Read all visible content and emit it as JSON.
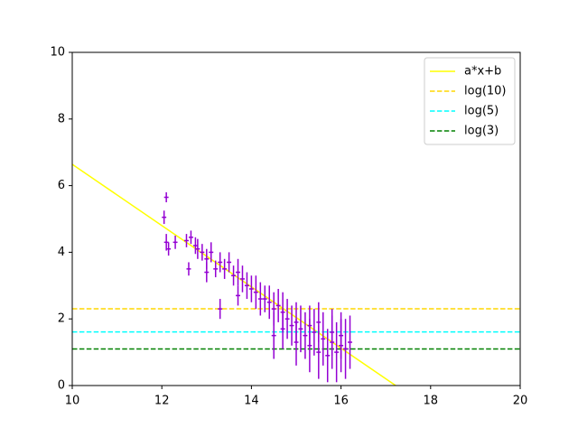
{
  "chart_data": {
    "type": "errorbar",
    "x": [
      12.05,
      12.1,
      12.1,
      12.15,
      12.3,
      12.55,
      12.6,
      12.65,
      12.75,
      12.8,
      12.9,
      13.0,
      13.0,
      13.1,
      13.2,
      13.3,
      13.3,
      13.4,
      13.5,
      13.6,
      13.7,
      13.7,
      13.8,
      13.9,
      14.0,
      14.1,
      14.2,
      14.3,
      14.4,
      14.5,
      14.5,
      14.6,
      14.7,
      14.7,
      14.8,
      14.9,
      15.0,
      15.0,
      15.1,
      15.2,
      15.3,
      15.3,
      15.4,
      15.5,
      15.5,
      15.6,
      15.7,
      15.8,
      15.8,
      15.9,
      16.0,
      16.0,
      16.1,
      16.2
    ],
    "values": [
      5.05,
      5.65,
      4.3,
      4.1,
      4.3,
      4.35,
      3.5,
      4.45,
      4.2,
      4.1,
      4.0,
      3.8,
      3.4,
      4.0,
      3.5,
      3.7,
      2.3,
      3.5,
      3.7,
      3.3,
      2.7,
      3.4,
      3.2,
      3.0,
      2.9,
      2.8,
      2.6,
      2.6,
      2.5,
      1.5,
      2.3,
      2.4,
      2.2,
      1.7,
      2.0,
      1.8,
      1.9,
      1.3,
      1.7,
      1.5,
      1.2,
      1.8,
      1.6,
      1.0,
      1.9,
      1.4,
      0.9,
      1.3,
      1.6,
      1.0,
      1.2,
      1.5,
      1.1,
      1.3
    ],
    "yerr": [
      0.2,
      0.15,
      0.25,
      0.2,
      0.2,
      0.2,
      0.2,
      0.2,
      0.25,
      0.3,
      0.25,
      0.3,
      0.3,
      0.3,
      0.25,
      0.3,
      0.3,
      0.3,
      0.3,
      0.3,
      0.3,
      0.4,
      0.4,
      0.4,
      0.4,
      0.5,
      0.5,
      0.4,
      0.5,
      0.7,
      0.5,
      0.5,
      0.6,
      0.6,
      0.6,
      0.6,
      0.6,
      0.7,
      0.7,
      0.7,
      0.8,
      0.6,
      0.7,
      0.8,
      0.6,
      0.8,
      0.8,
      0.8,
      0.7,
      0.9,
      0.8,
      0.7,
      0.9,
      0.8
    ],
    "xerr": [
      0.05,
      0.05,
      0.05,
      0.05,
      0.05,
      0.05,
      0.05,
      0.05,
      0.05,
      0.05,
      0.05,
      0.05,
      0.05,
      0.05,
      0.05,
      0.05,
      0.05,
      0.05,
      0.05,
      0.05,
      0.05,
      0.05,
      0.05,
      0.05,
      0.05,
      0.05,
      0.05,
      0.05,
      0.05,
      0.05,
      0.05,
      0.05,
      0.05,
      0.05,
      0.05,
      0.05,
      0.05,
      0.05,
      0.05,
      0.05,
      0.05,
      0.05,
      0.05,
      0.05,
      0.05,
      0.05,
      0.05,
      0.05,
      0.05,
      0.05,
      0.05,
      0.05,
      0.05,
      0.05
    ],
    "color": "#9400d3",
    "lines": [
      {
        "name": "a*x+b",
        "color": "#ffff00",
        "dashed": false,
        "x": [
          10,
          17.22
        ],
        "values": [
          6.64,
          0
        ]
      },
      {
        "name": "log(10)",
        "color": "#ffd700",
        "dashed": true,
        "x": [
          10,
          20
        ],
        "values": [
          2.303,
          2.303
        ]
      },
      {
        "name": "log(5)",
        "color": "#00ffff",
        "dashed": true,
        "x": [
          10,
          20
        ],
        "values": [
          1.609,
          1.609
        ]
      },
      {
        "name": "log(3)",
        "color": "#008000",
        "dashed": true,
        "x": [
          10,
          20
        ],
        "values": [
          1.099,
          1.099
        ]
      }
    ],
    "xlim": [
      10,
      20
    ],
    "xticks": [
      10,
      12,
      14,
      16,
      18,
      20
    ],
    "ylim": [
      0,
      10
    ],
    "yticks": [
      0,
      2,
      4,
      6,
      8,
      10
    ],
    "legend": "upper right"
  }
}
